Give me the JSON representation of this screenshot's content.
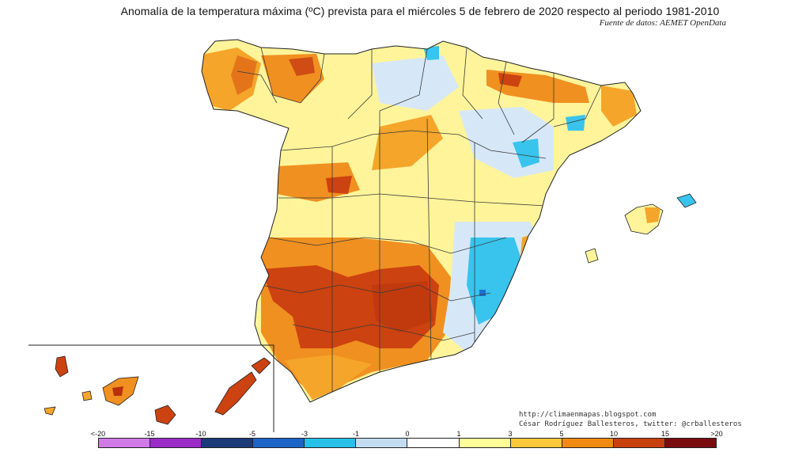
{
  "header": {
    "title": "Anomalía de la temperatura máxima (ºC) prevista para el miércoles 5 de febrero de 2020 respecto al periodo 1981-2010",
    "source": "Fuente de datos: AEMET OpenData"
  },
  "credits": {
    "blog": "http://climaenmapas.blogspot.com",
    "author": "César Rodríguez Ballesteros, twitter: @crballesteros"
  },
  "legend": {
    "ticks": [
      "<-20",
      "-15",
      "-10",
      "-5",
      "-3",
      "-1",
      "0",
      "1",
      "3",
      "5",
      "10",
      "15",
      ">20"
    ],
    "colors": [
      "#d07ae8",
      "#9c2cc8",
      "#1a3a78",
      "#1c64c8",
      "#26c0e8",
      "#c2ddf2",
      "#ffffff",
      "#ffff9a",
      "#fcc83a",
      "#f08a10",
      "#c8400e",
      "#7a0c10"
    ]
  },
  "palette": {
    "warm_light": "#fff49a",
    "warm_mid": "#fcc040",
    "warm_orange": "#f0901c",
    "warm_red": "#cc4210",
    "cool_light": "#d6e8f8",
    "cool_cyan": "#38c4ec",
    "cool_blue": "#1e6fd0"
  }
}
